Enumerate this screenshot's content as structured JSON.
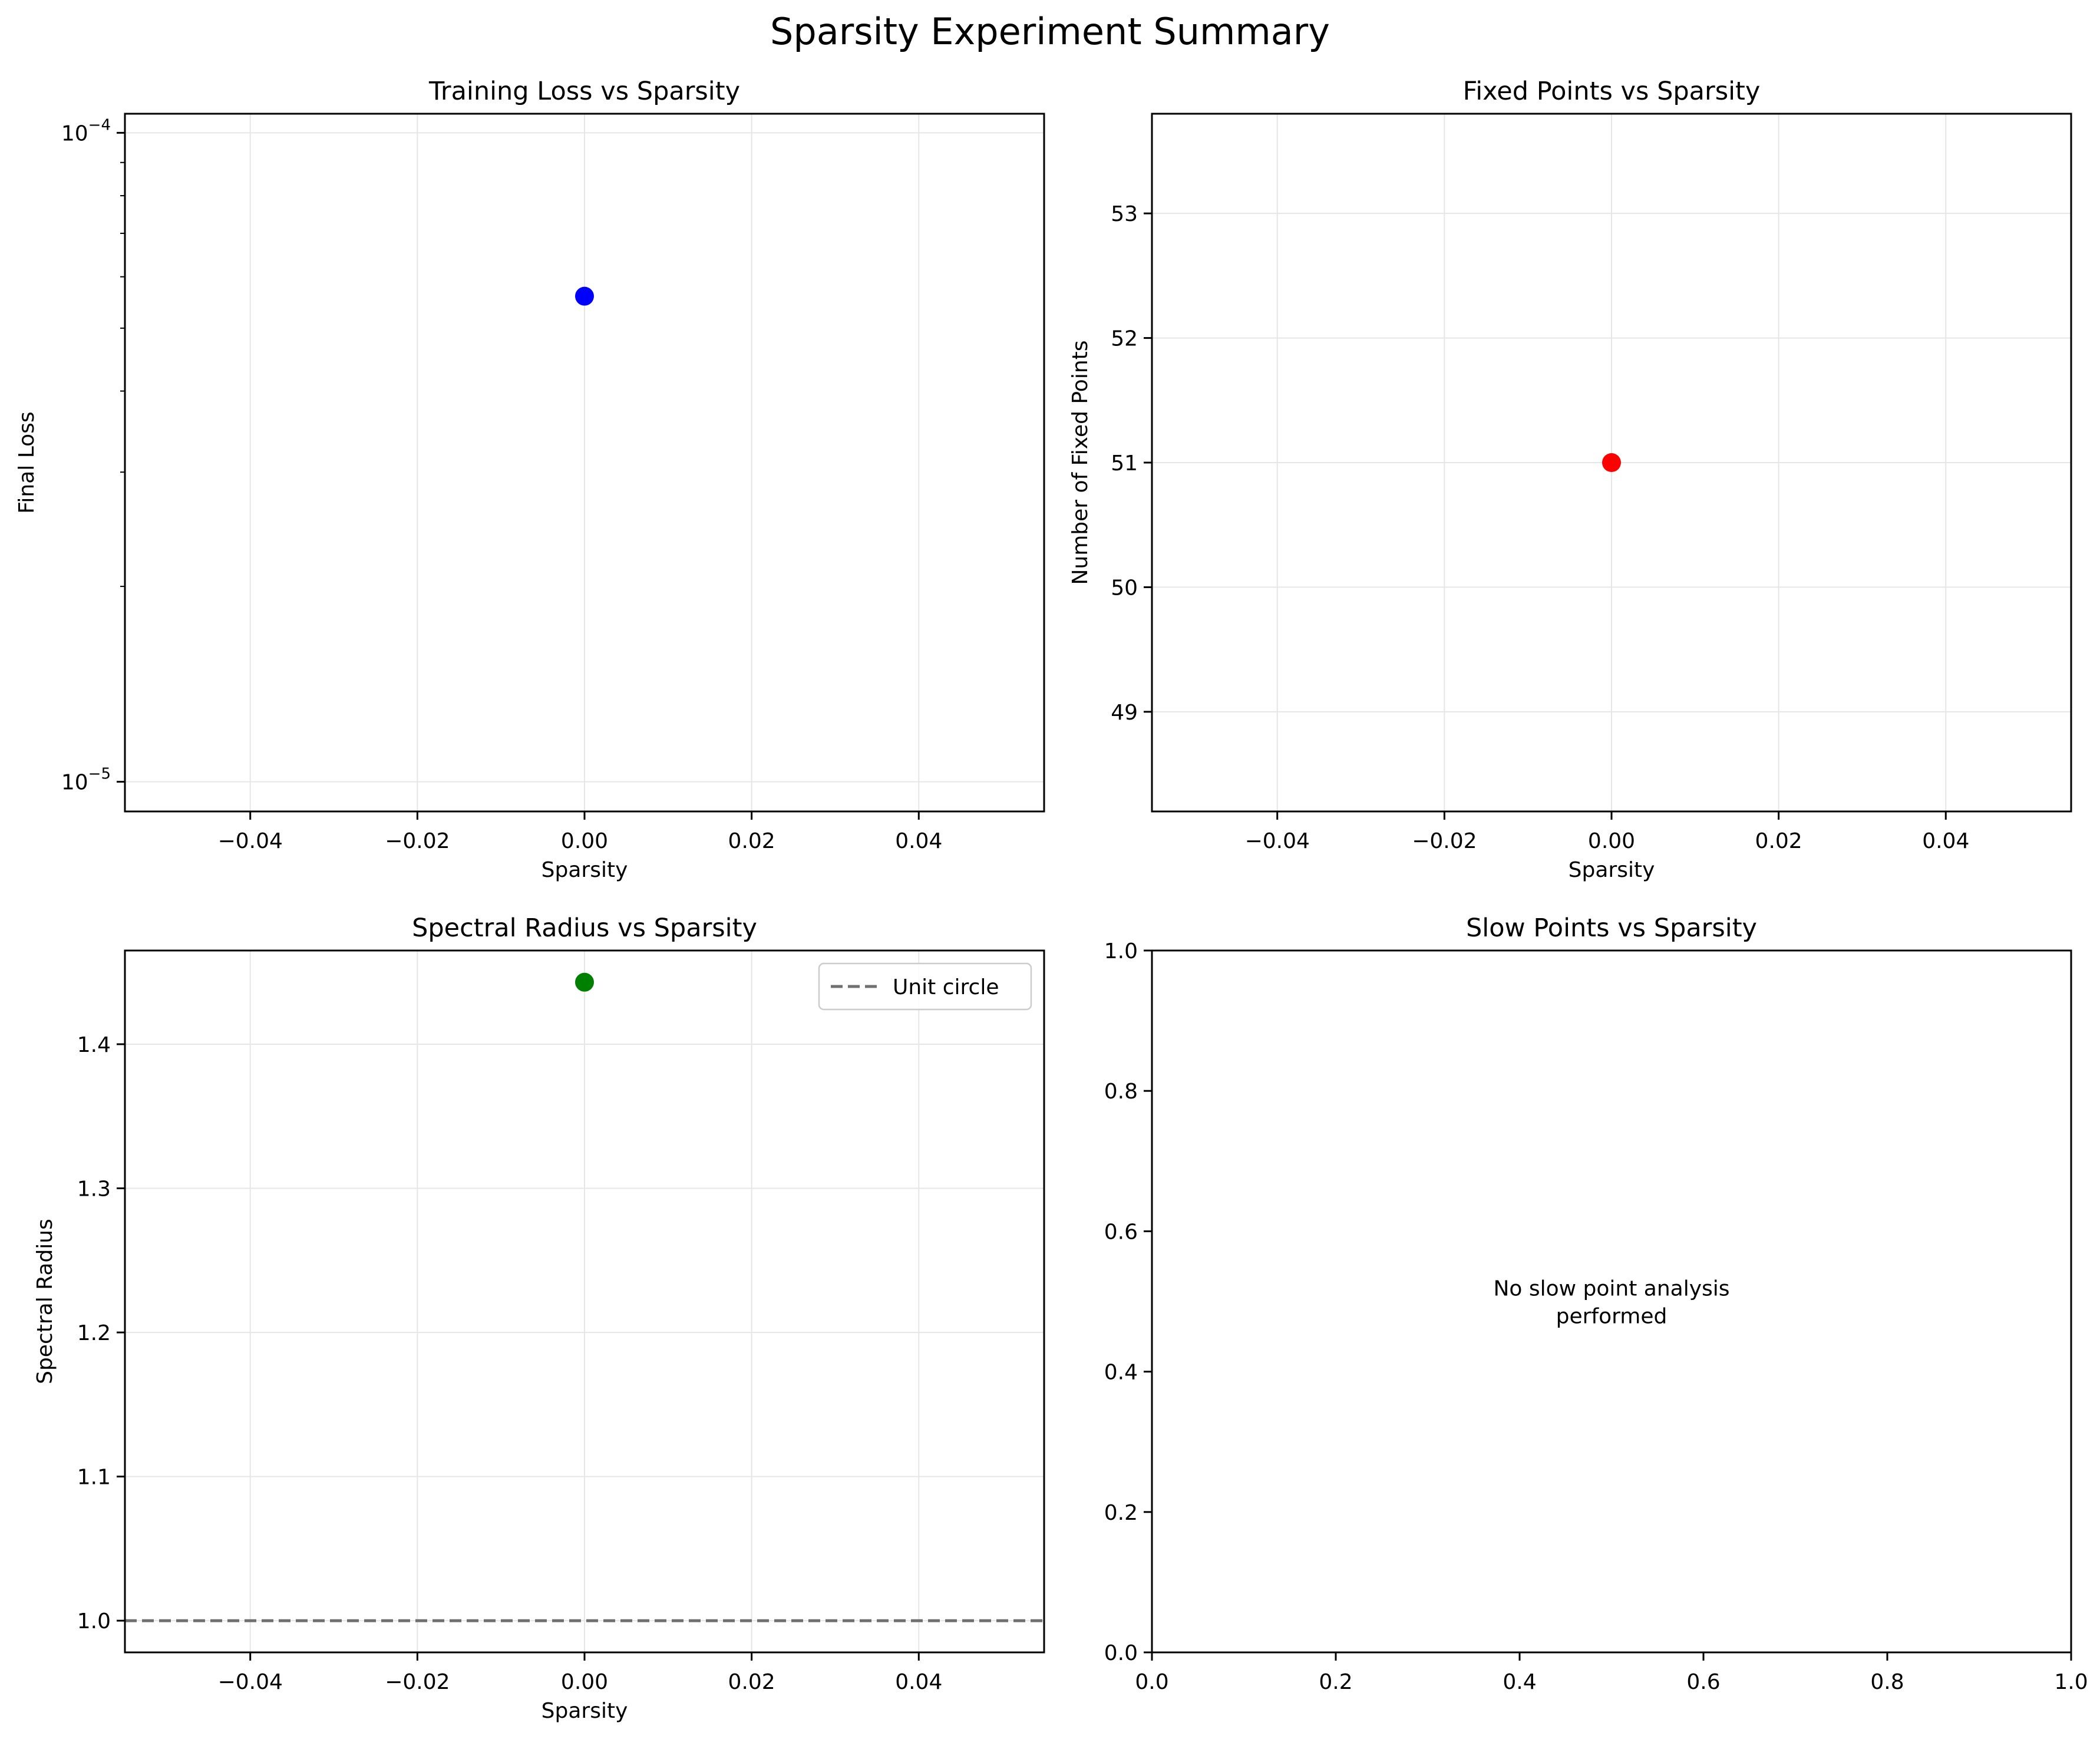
{
  "figure": {
    "suptitle": "Sparsity Experiment Summary"
  },
  "chart_data": [
    {
      "id": "loss",
      "type": "scatter",
      "title": "Training Loss vs Sparsity",
      "xlabel": "Sparsity",
      "ylabel": "Final Loss",
      "yscale": "log",
      "xlim": [
        -0.055,
        0.055
      ],
      "ylim": [
        9e-06,
        0.000107
      ],
      "x_ticks": [
        -0.04,
        -0.02,
        0.0,
        0.02,
        0.04
      ],
      "x_tick_labels": [
        "−0.04",
        "−0.02",
        "0.00",
        "0.02",
        "0.04"
      ],
      "y_major_ticks": [
        1e-05,
        0.0001
      ],
      "y_tick_labels": [
        {
          "base": "10",
          "exp": "−5"
        },
        {
          "base": "10",
          "exp": "−4"
        }
      ],
      "y_minor_ticks": [
        2e-05,
        3e-05,
        4e-05,
        5e-05,
        6e-05,
        7e-05,
        8e-05,
        9e-05
      ],
      "grid": true,
      "marker_color": "#0000ff",
      "points": [
        {
          "x": 0.0,
          "y": 5.6e-05
        }
      ]
    },
    {
      "id": "fixed",
      "type": "scatter",
      "title": "Fixed Points vs Sparsity",
      "xlabel": "Sparsity",
      "ylabel": "Number of Fixed Points",
      "xlim": [
        -0.055,
        0.055
      ],
      "ylim": [
        48.2,
        53.8
      ],
      "x_ticks": [
        -0.04,
        -0.02,
        0.0,
        0.02,
        0.04
      ],
      "x_tick_labels": [
        "−0.04",
        "−0.02",
        "0.00",
        "0.02",
        "0.04"
      ],
      "y_ticks": [
        49,
        50,
        51,
        52,
        53
      ],
      "y_tick_labels": [
        "49",
        "50",
        "51",
        "52",
        "53"
      ],
      "grid": true,
      "marker_color": "#ff0000",
      "points": [
        {
          "x": 0.0,
          "y": 51
        }
      ]
    },
    {
      "id": "spectral",
      "type": "scatter",
      "title": "Spectral Radius vs Sparsity",
      "xlabel": "Sparsity",
      "ylabel": "Spectral Radius",
      "xlim": [
        -0.055,
        0.055
      ],
      "ylim": [
        0.978,
        1.465
      ],
      "x_ticks": [
        -0.04,
        -0.02,
        0.0,
        0.02,
        0.04
      ],
      "x_tick_labels": [
        "−0.04",
        "−0.02",
        "0.00",
        "0.02",
        "0.04"
      ],
      "y_ticks": [
        1.0,
        1.1,
        1.2,
        1.3,
        1.4
      ],
      "y_tick_labels": [
        "1.0",
        "1.1",
        "1.2",
        "1.3",
        "1.4"
      ],
      "grid": true,
      "marker_color": "#008000",
      "points": [
        {
          "x": 0.0,
          "y": 1.443
        }
      ],
      "reference_line": {
        "y": 1.0,
        "label": "Unit circle",
        "color": "#707070",
        "style": "dashed"
      },
      "legend": {
        "position": "top-right",
        "entries": [
          "Unit circle"
        ]
      }
    },
    {
      "id": "slow",
      "type": "scatter",
      "title": "Slow Points vs Sparsity",
      "xlabel": "",
      "ylabel": "",
      "xlim": [
        0,
        1
      ],
      "ylim": [
        0,
        1
      ],
      "x_ticks": [
        0,
        0.2,
        0.4,
        0.6,
        0.8,
        1.0
      ],
      "x_tick_labels": [
        "0.0",
        "0.2",
        "0.4",
        "0.6",
        "0.8",
        "1.0"
      ],
      "y_ticks": [
        0,
        0.2,
        0.4,
        0.6,
        0.8,
        1.0
      ],
      "y_tick_labels": [
        "0.0",
        "0.2",
        "0.4",
        "0.6",
        "0.8",
        "1.0"
      ],
      "grid": false,
      "points": [],
      "annotation": {
        "lines": [
          "No slow point analysis",
          "performed"
        ],
        "x": 0.5,
        "y": 0.5
      }
    }
  ]
}
